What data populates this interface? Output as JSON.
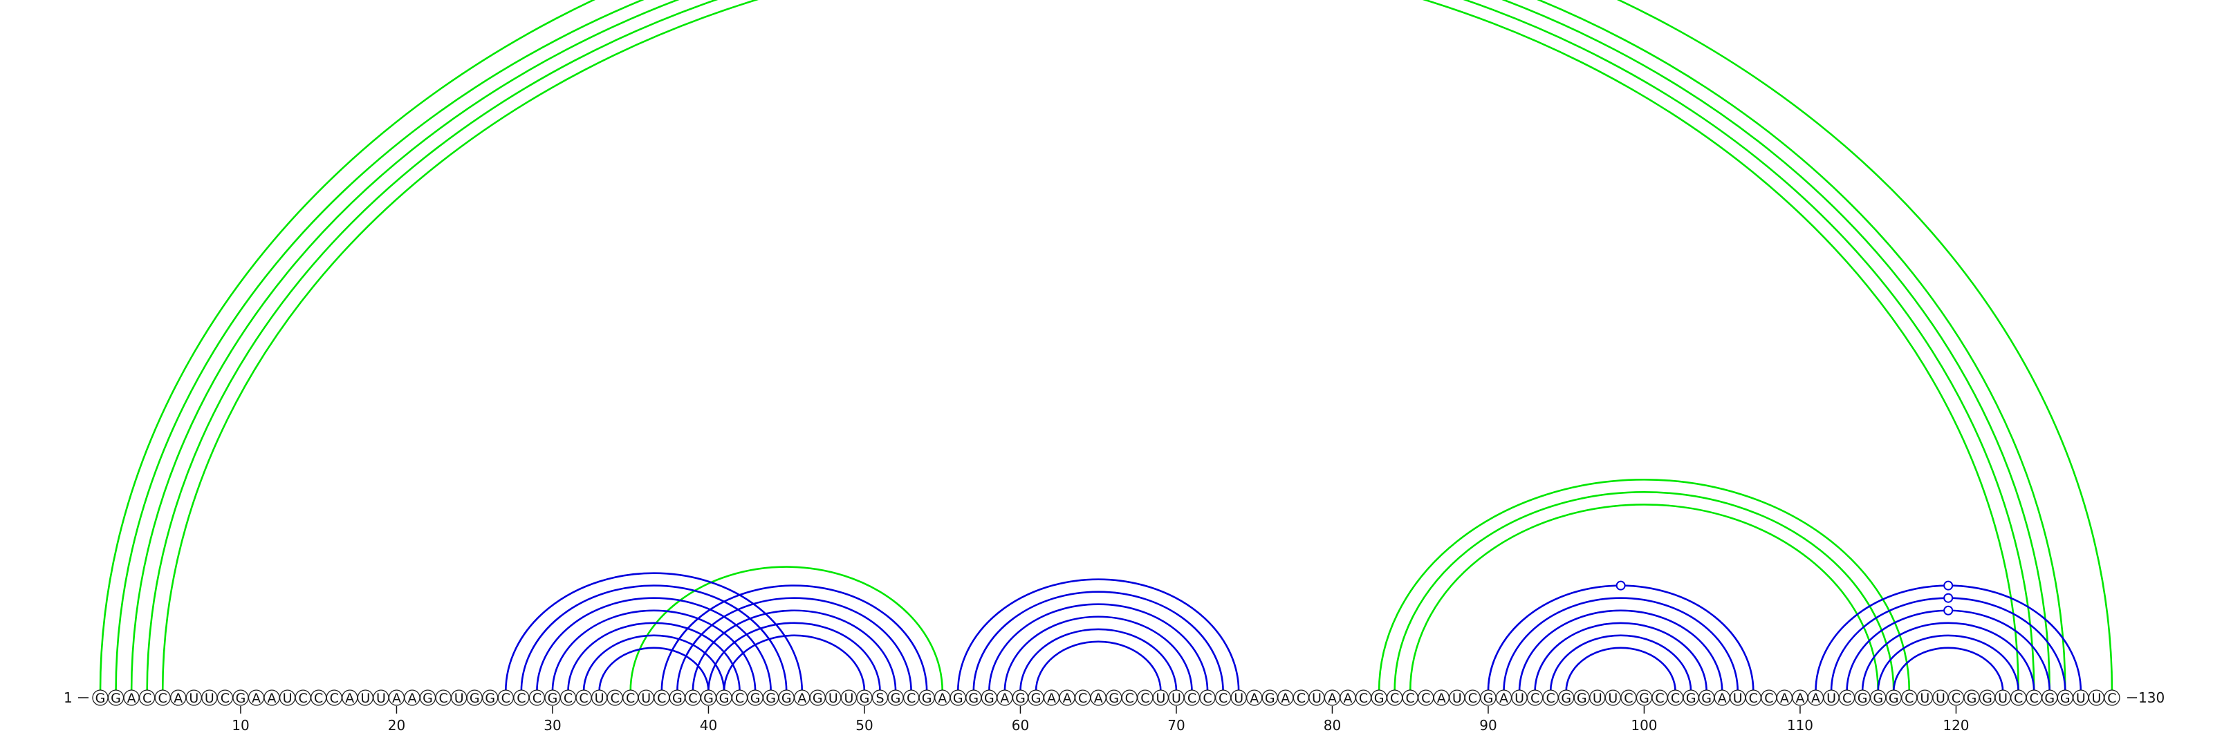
{
  "sequence": "GGACCAUUCGAAUCCCAUUAAGCUGGCCCGCCUCCUCGCGGCGGGAGUUGSGCGAGGGAGGAACAGCCUUCCCUAGACUAACGCCCAUCGAUCCGGUUCGCCGGAUCCAAAUCGGGCUUCGGUCCGGUUC",
  "start_label": "1",
  "end_label": "130",
  "tick_labels": [
    "10",
    "20",
    "30",
    "40",
    "50",
    "60",
    "70",
    "80",
    "90",
    "100",
    "110",
    "120"
  ],
  "colors": {
    "pair_green": "#00e600",
    "pair_blue": "#0000dd"
  },
  "chart_data": {
    "type": "arc-diagram",
    "length": 130,
    "ticks": [
      10,
      20,
      30,
      40,
      50,
      60,
      70,
      80,
      90,
      100,
      110,
      120
    ],
    "helices": [
      {
        "color": "green",
        "from": 1,
        "to": 130,
        "count": 1,
        "marker": 66
      },
      {
        "color": "green",
        "from": 2,
        "to": 127,
        "count": 4
      },
      {
        "color": "green",
        "from": 35,
        "to": 55,
        "count": 1
      },
      {
        "color": "green",
        "from": 83,
        "to": 117,
        "count": 3
      },
      {
        "color": "blue",
        "from": 27,
        "to": 46,
        "count": 7
      },
      {
        "color": "blue",
        "from": 37,
        "to": 54,
        "count": 5
      },
      {
        "color": "blue",
        "from": 56,
        "to": 74,
        "count": 6
      },
      {
        "color": "blue",
        "from": 90,
        "to": 107,
        "count": 6,
        "marker": 99
      },
      {
        "color": "blue",
        "from": 111,
        "to": 128,
        "count": 6,
        "markers": [
          120,
          120,
          120
        ]
      }
    ]
  }
}
